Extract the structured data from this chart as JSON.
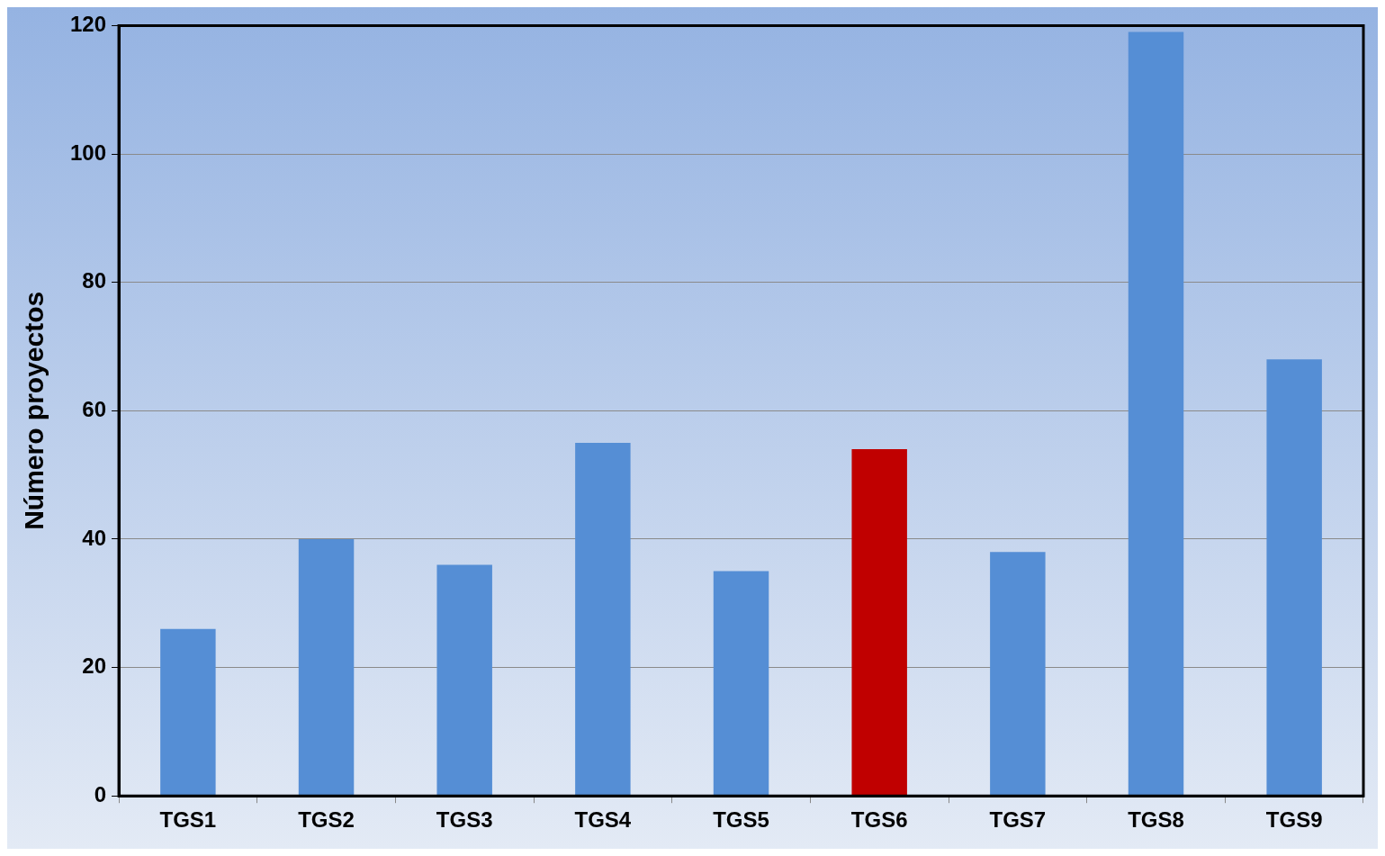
{
  "chart_data": {
    "type": "bar",
    "ylabel": "Número proyectos",
    "categories": [
      "TGS1",
      "TGS2",
      "TGS3",
      "TGS4",
      "TGS5",
      "TGS6",
      "TGS7",
      "TGS8",
      "TGS9"
    ],
    "values": [
      26,
      40,
      36,
      55,
      35,
      54,
      38,
      119,
      68
    ],
    "colors": [
      "#558ed5",
      "#558ed5",
      "#558ed5",
      "#558ed5",
      "#558ed5",
      "#c00000",
      "#558ed5",
      "#558ed5",
      "#558ed5"
    ],
    "ylim": [
      0,
      120
    ],
    "yticks": [
      0,
      20,
      40,
      60,
      80,
      100,
      120
    ],
    "grid": "y",
    "legend": false
  }
}
